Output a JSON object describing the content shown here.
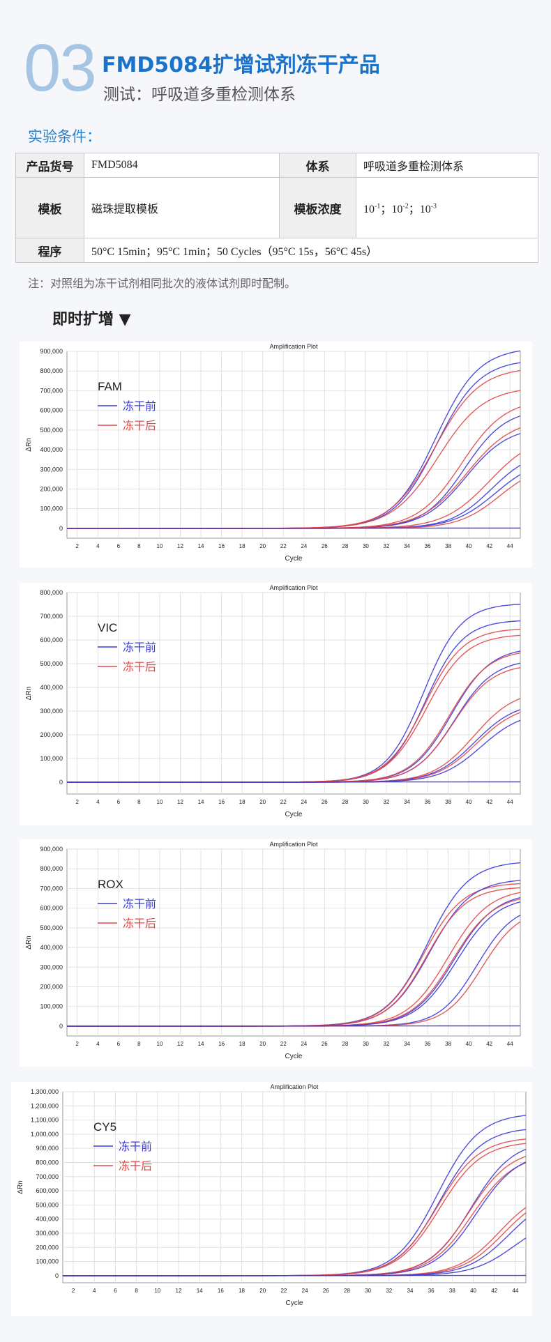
{
  "header": {
    "number": "03",
    "title": "FMD5084扩增试剂冻干产品",
    "subtitle": "测试：呼吸道多重检测体系"
  },
  "conditions": {
    "label": "实验条件：",
    "rows": [
      {
        "h1": "产品货号",
        "v1": "FMD5084",
        "h2": "体系",
        "v2": "呼吸道多重检测体系"
      },
      {
        "h1": "模板",
        "v1": "磁珠提取模板",
        "h2": "模板浓度",
        "v2_parts": [
          "10",
          "-1",
          "；10",
          "-2",
          "；10",
          "-3"
        ]
      },
      {
        "h1": "程序",
        "v1": "50°C 15min；95°C 1min；50 Cycles（95°C 15s，56°C 45s）"
      }
    ],
    "note": "注：对照组为冻干试剂相同批次的液体试剂即时配制。"
  },
  "section": {
    "title": "即时扩增 ▼"
  },
  "legend": {
    "before": "冻干前",
    "after": "冻干后"
  },
  "colors": {
    "before": "#3b3bd9",
    "after": "#e04848",
    "accent": "#1a73c9"
  },
  "chart_data": [
    {
      "type": "line",
      "title": "Amplification Plot",
      "channel": "FAM",
      "xlabel": "Cycle",
      "ylabel": "ΔRn",
      "xlim": [
        1,
        45
      ],
      "ylim": [
        -50000,
        900000
      ],
      "xticks": [
        2,
        4,
        6,
        8,
        10,
        12,
        14,
        16,
        18,
        20,
        22,
        24,
        26,
        28,
        30,
        32,
        34,
        36,
        38,
        40,
        42,
        44
      ],
      "yticks": [
        0,
        100000,
        200000,
        300000,
        400000,
        500000,
        600000,
        700000,
        800000,
        900000
      ],
      "ytick_labels": [
        "0",
        "100,000",
        "200,000",
        "300,000",
        "400,000",
        "500,000",
        "600,000",
        "700,000",
        "800,000",
        "900,000"
      ],
      "grid": true,
      "legend_position": "top-left",
      "curves": [
        {
          "group": "before",
          "plateau": 920000,
          "ct": 36.8,
          "slope": 0.48
        },
        {
          "group": "before",
          "plateau": 860000,
          "ct": 36.9,
          "slope": 0.48
        },
        {
          "group": "after",
          "plateau": 820000,
          "ct": 36.7,
          "slope": 0.46
        },
        {
          "group": "after",
          "plateau": 720000,
          "ct": 37.0,
          "slope": 0.45
        },
        {
          "group": "before",
          "plateau": 610000,
          "ct": 39.6,
          "slope": 0.5
        },
        {
          "group": "after",
          "plateau": 660000,
          "ct": 39.3,
          "slope": 0.47
        },
        {
          "group": "before",
          "plateau": 520000,
          "ct": 39.7,
          "slope": 0.48
        },
        {
          "group": "after",
          "plateau": 560000,
          "ct": 39.8,
          "slope": 0.45
        },
        {
          "group": "before",
          "plateau": 400000,
          "ct": 42.2,
          "slope": 0.5
        },
        {
          "group": "after",
          "plateau": 480000,
          "ct": 42.0,
          "slope": 0.45
        },
        {
          "group": "before",
          "plateau": 360000,
          "ct": 42.6,
          "slope": 0.48
        },
        {
          "group": "after",
          "plateau": 330000,
          "ct": 43.0,
          "slope": 0.5
        },
        {
          "group": "before",
          "plateau": 5000,
          "ct": 50,
          "slope": 0.2
        }
      ]
    },
    {
      "type": "line",
      "title": "Amplification Plot",
      "channel": "VIC",
      "xlabel": "Cycle",
      "ylabel": "ΔRn",
      "xlim": [
        1,
        45
      ],
      "ylim": [
        -50000,
        800000
      ],
      "xticks": [
        2,
        4,
        6,
        8,
        10,
        12,
        14,
        16,
        18,
        20,
        22,
        24,
        26,
        28,
        30,
        32,
        34,
        36,
        38,
        40,
        42,
        44
      ],
      "yticks": [
        0,
        100000,
        200000,
        300000,
        400000,
        500000,
        600000,
        700000,
        800000
      ],
      "ytick_labels": [
        "0",
        "100,000",
        "200,000",
        "300,000",
        "400,000",
        "500,000",
        "600,000",
        "700,000",
        "800,000"
      ],
      "grid": true,
      "legend_position": "top-left",
      "curves": [
        {
          "group": "before",
          "plateau": 755000,
          "ct": 35.6,
          "slope": 0.55
        },
        {
          "group": "before",
          "plateau": 685000,
          "ct": 35.8,
          "slope": 0.55
        },
        {
          "group": "after",
          "plateau": 650000,
          "ct": 35.7,
          "slope": 0.53
        },
        {
          "group": "after",
          "plateau": 625000,
          "ct": 35.9,
          "slope": 0.52
        },
        {
          "group": "before",
          "plateau": 570000,
          "ct": 38.3,
          "slope": 0.52
        },
        {
          "group": "after",
          "plateau": 560000,
          "ct": 38.1,
          "slope": 0.52
        },
        {
          "group": "before",
          "plateau": 520000,
          "ct": 38.6,
          "slope": 0.52
        },
        {
          "group": "after",
          "plateau": 500000,
          "ct": 38.5,
          "slope": 0.52
        },
        {
          "group": "after",
          "plateau": 390000,
          "ct": 40.5,
          "slope": 0.5
        },
        {
          "group": "before",
          "plateau": 340000,
          "ct": 40.6,
          "slope": 0.5
        },
        {
          "group": "after",
          "plateau": 330000,
          "ct": 40.8,
          "slope": 0.5
        },
        {
          "group": "before",
          "plateau": 300000,
          "ct": 41.2,
          "slope": 0.5
        },
        {
          "group": "before",
          "plateau": 5000,
          "ct": 50,
          "slope": 0.2
        }
      ]
    },
    {
      "type": "line",
      "title": "Amplification Plot",
      "channel": "ROX",
      "xlabel": "Cycle",
      "ylabel": "ΔRn",
      "xlim": [
        1,
        45
      ],
      "ylim": [
        -50000,
        900000
      ],
      "xticks": [
        2,
        4,
        6,
        8,
        10,
        12,
        14,
        16,
        18,
        20,
        22,
        24,
        26,
        28,
        30,
        32,
        34,
        36,
        38,
        40,
        42,
        44
      ],
      "yticks": [
        0,
        100000,
        200000,
        300000,
        400000,
        500000,
        600000,
        700000,
        800000,
        900000
      ],
      "ytick_labels": [
        "0",
        "100,000",
        "200,000",
        "300,000",
        "400,000",
        "500,000",
        "600,000",
        "700,000",
        "800,000",
        "900,000"
      ],
      "grid": true,
      "legend_position": "top-left",
      "curves": [
        {
          "group": "before",
          "plateau": 840000,
          "ct": 36.0,
          "slope": 0.5
        },
        {
          "group": "after",
          "plateau": 730000,
          "ct": 35.6,
          "slope": 0.52
        },
        {
          "group": "before",
          "plateau": 750000,
          "ct": 36.2,
          "slope": 0.5
        },
        {
          "group": "after",
          "plateau": 710000,
          "ct": 35.9,
          "slope": 0.52
        },
        {
          "group": "after",
          "plateau": 700000,
          "ct": 38.0,
          "slope": 0.5
        },
        {
          "group": "before",
          "plateau": 680000,
          "ct": 38.6,
          "slope": 0.5
        },
        {
          "group": "after",
          "plateau": 670000,
          "ct": 38.4,
          "slope": 0.5
        },
        {
          "group": "before",
          "plateau": 660000,
          "ct": 38.8,
          "slope": 0.5
        },
        {
          "group": "before",
          "plateau": 620000,
          "ct": 40.8,
          "slope": 0.55
        },
        {
          "group": "after",
          "plateau": 600000,
          "ct": 41.3,
          "slope": 0.55
        },
        {
          "group": "before",
          "plateau": 5000,
          "ct": 50,
          "slope": 0.2
        }
      ]
    },
    {
      "type": "line",
      "title": "Amplification Plot",
      "channel": "CY5",
      "xlabel": "Cycle",
      "ylabel": "ΔRn",
      "xlim": [
        1,
        45
      ],
      "ylim": [
        -50000,
        1300000
      ],
      "xticks": [
        2,
        4,
        6,
        8,
        10,
        12,
        14,
        16,
        18,
        20,
        22,
        24,
        26,
        28,
        30,
        32,
        34,
        36,
        38,
        40,
        42,
        44
      ],
      "yticks": [
        0,
        100000,
        200000,
        300000,
        400000,
        500000,
        600000,
        700000,
        800000,
        900000,
        1000000,
        1100000,
        1200000,
        1300000
      ],
      "ytick_labels": [
        "0",
        "100,000",
        "200,000",
        "300,000",
        "400,000",
        "500,000",
        "600,000",
        "700,000",
        "800,000",
        "900,000",
        "1,000,000",
        "1,100,000",
        "1,200,000",
        "1,300,000"
      ],
      "grid": true,
      "legend_position": "top-left",
      "curves": [
        {
          "group": "before",
          "plateau": 1150000,
          "ct": 36.6,
          "slope": 0.5
        },
        {
          "group": "before",
          "plateau": 1050000,
          "ct": 36.8,
          "slope": 0.5
        },
        {
          "group": "after",
          "plateau": 980000,
          "ct": 36.6,
          "slope": 0.5
        },
        {
          "group": "after",
          "plateau": 950000,
          "ct": 36.8,
          "slope": 0.5
        },
        {
          "group": "before",
          "plateau": 960000,
          "ct": 39.8,
          "slope": 0.5
        },
        {
          "group": "after",
          "plateau": 900000,
          "ct": 39.6,
          "slope": 0.5
        },
        {
          "group": "after",
          "plateau": 860000,
          "ct": 39.9,
          "slope": 0.5
        },
        {
          "group": "before",
          "plateau": 880000,
          "ct": 40.3,
          "slope": 0.5
        },
        {
          "group": "after",
          "plateau": 620000,
          "ct": 42.5,
          "slope": 0.5
        },
        {
          "group": "after",
          "plateau": 600000,
          "ct": 42.9,
          "slope": 0.5
        },
        {
          "group": "before",
          "plateau": 580000,
          "ct": 43.4,
          "slope": 0.5
        },
        {
          "group": "before",
          "plateau": 420000,
          "ct": 43.9,
          "slope": 0.5
        },
        {
          "group": "before",
          "plateau": 5000,
          "ct": 50,
          "slope": 0.2
        }
      ]
    }
  ]
}
